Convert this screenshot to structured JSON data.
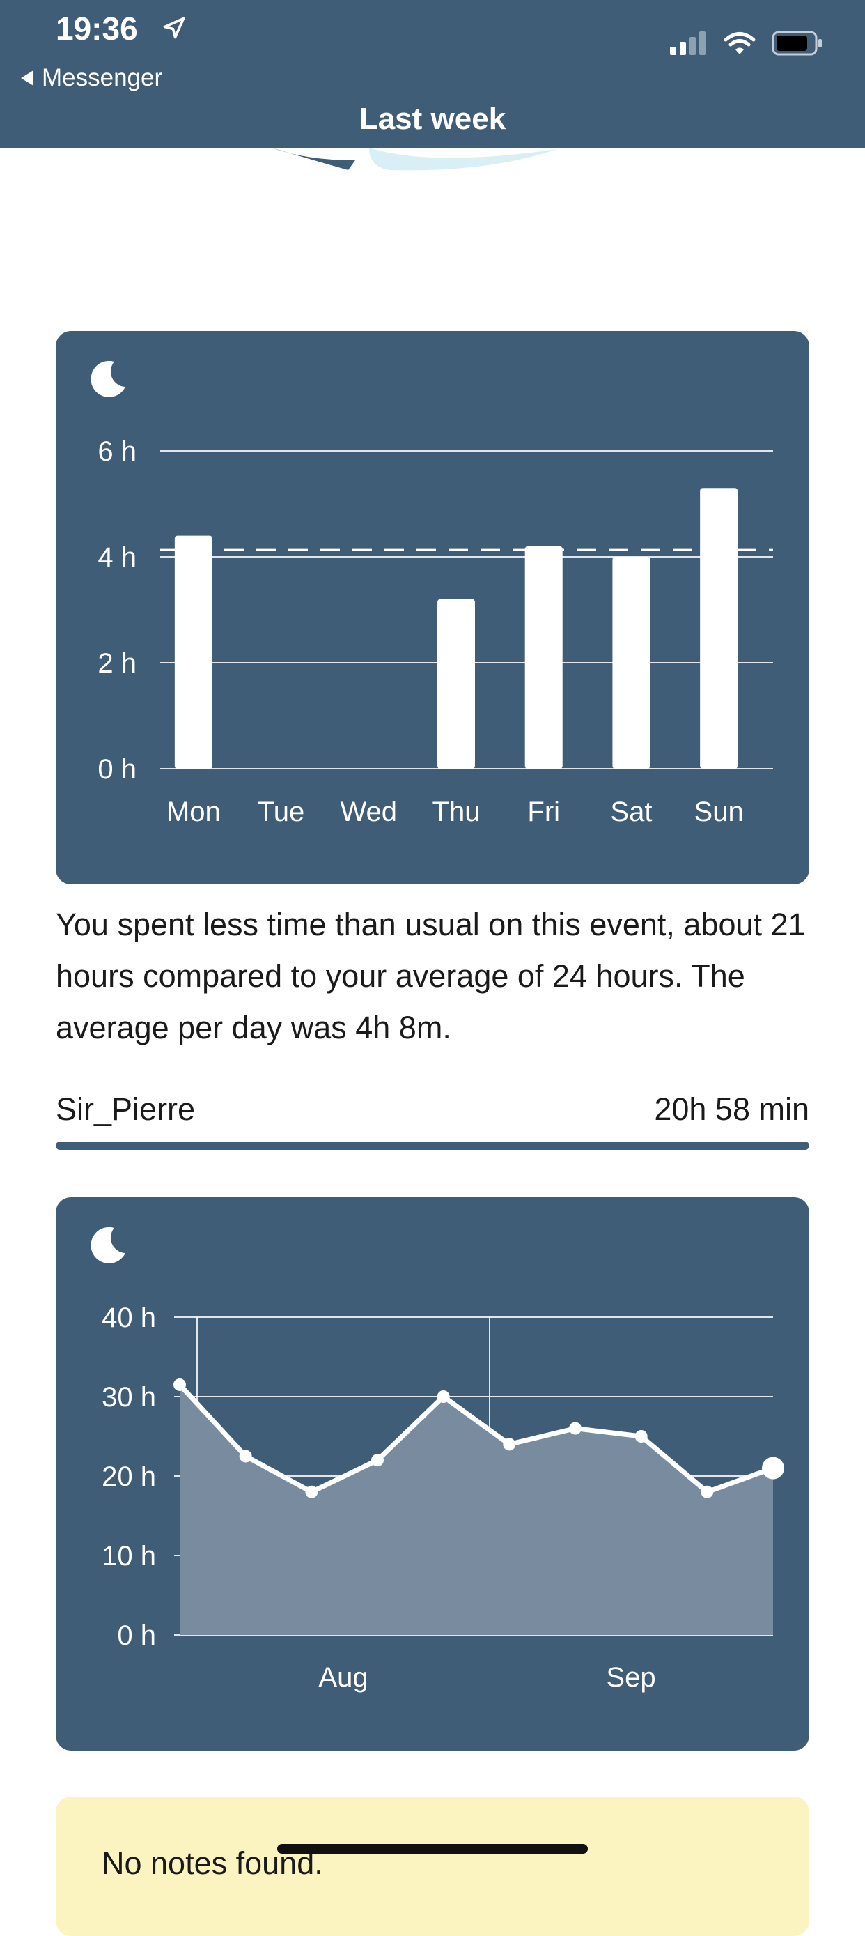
{
  "status_bar": {
    "time": "19:36",
    "back_label": "Messenger"
  },
  "header": {
    "title": "Last week"
  },
  "weekly_chart": {
    "icon": "moon-icon",
    "chart_data": {
      "type": "bar",
      "categories": [
        "Mon",
        "Tue",
        "Wed",
        "Thu",
        "Fri",
        "Sat",
        "Sun"
      ],
      "values": [
        4.4,
        0,
        0,
        3.2,
        4.2,
        4.0,
        5.3
      ],
      "average_line": 4.13,
      "ylim": [
        0,
        6
      ],
      "yticks": [
        0,
        2,
        4,
        6
      ],
      "ytick_labels": [
        "0 h",
        "2 h",
        "4 h",
        "6 h"
      ],
      "grid": true,
      "bar_color": "#ffffff"
    }
  },
  "summary": {
    "text": "You spent less time than usual on this event, about 21 hours compared to your average of 24 hours. The average per day was 4h 8m."
  },
  "person": {
    "name": "Sir_Pierre",
    "duration": "20h 58 min",
    "progress_pct": 100
  },
  "trend_chart": {
    "icon": "moon-icon",
    "chart_data": {
      "type": "area",
      "x_labels": [
        "Aug",
        "Sep"
      ],
      "values": [
        31.5,
        22.5,
        18,
        22,
        30,
        24,
        26,
        25,
        18,
        21
      ],
      "ylim": [
        0,
        40
      ],
      "yticks": [
        0,
        10,
        20,
        30,
        40
      ],
      "ytick_labels": [
        "0 h",
        "10 h",
        "20 h",
        "30 h",
        "40 h"
      ],
      "grid": true
    }
  },
  "notes": {
    "text": "No notes found."
  },
  "colors": {
    "primary": "#3f5d77",
    "notes_bg": "#fbf3c0",
    "area_fill": "#788b9f"
  }
}
